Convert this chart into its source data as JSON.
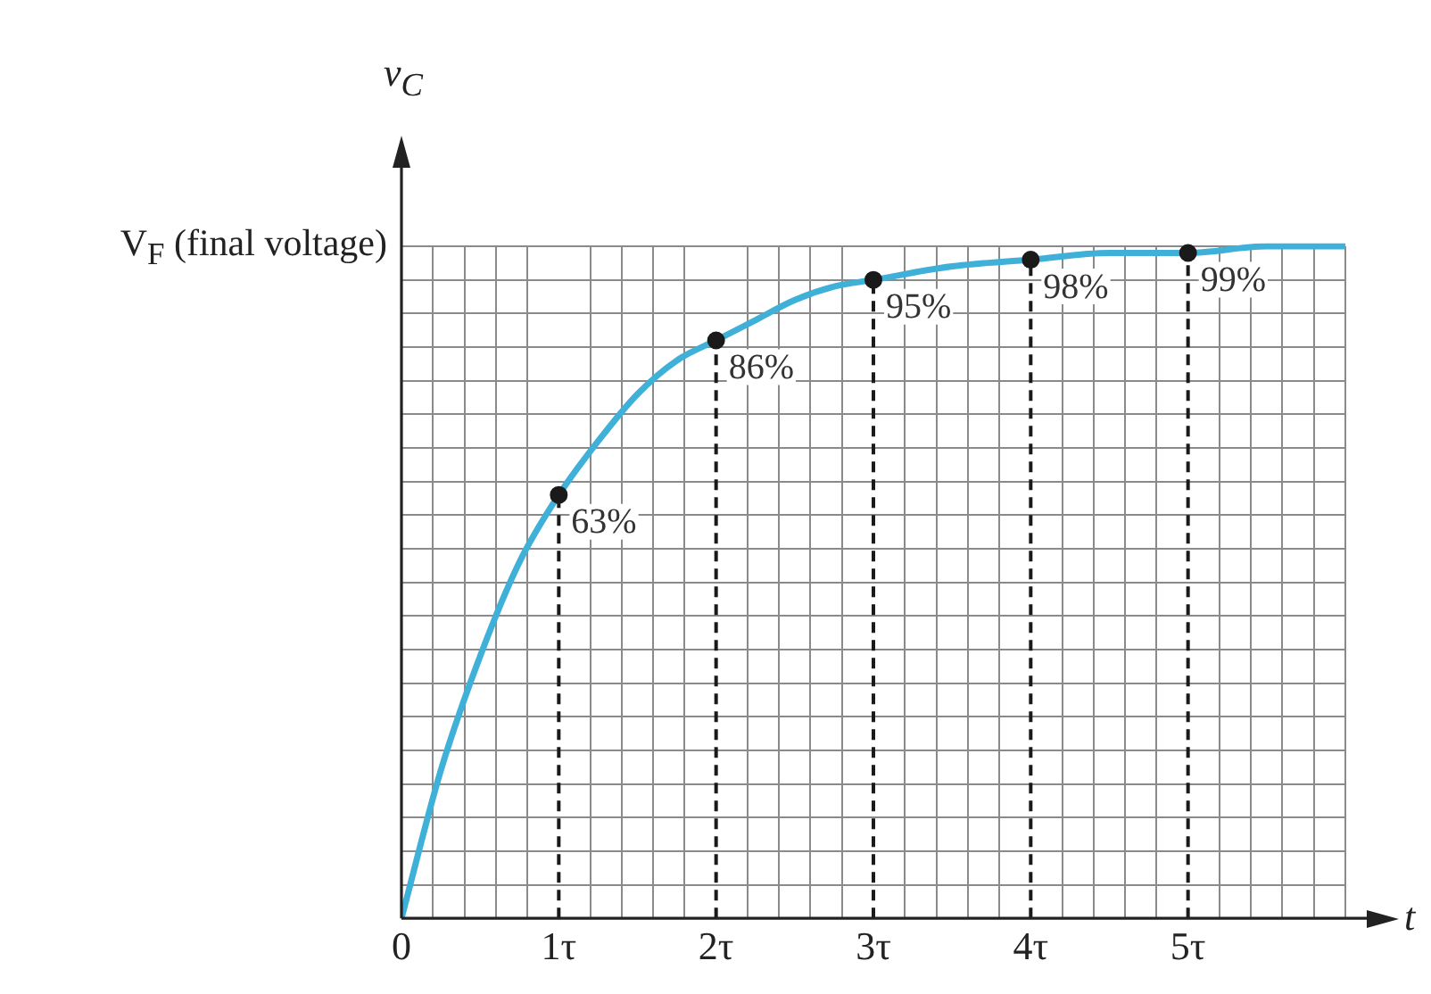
{
  "chart_data": {
    "type": "line",
    "xlabel": "t",
    "ylabel": "v$_{C}$",
    "annotations": [
      "V$_{F}$ (final voltage)"
    ],
    "xlim": [
      0,
      6
    ],
    "xticks": [
      0,
      {
        "value": 0.2,
        "label": null
      },
      {
        "value": 0.4,
        "label": null
      },
      {
        "value": 0.6,
        "label": null
      },
      {
        "value": 0.8,
        "label": null
      },
      {
        "value": 1,
        "label": "1τ"
      },
      {
        "value": 1.2,
        "label": null
      },
      {
        "value": 1.4,
        "label": null
      },
      {
        "value": 1.6,
        "label": null
      },
      {
        "value": 1.8,
        "label": null
      },
      {
        "value": 2,
        "label": "2τ"
      },
      {
        "value": 2.2,
        "label": null
      },
      {
        "value": 2.4,
        "label": null
      },
      {
        "value": 2.6,
        "label": null
      },
      {
        "value": 2.8,
        "label": null
      },
      {
        "value": 3,
        "label": "3τ"
      },
      {
        "value": 3.2,
        "label": null
      },
      {
        "value": 3.4,
        "label": null
      },
      {
        "value": 3.6,
        "label": null
      },
      {
        "value": 3.8,
        "label": null
      },
      {
        "value": 4,
        "label": "4τ"
      },
      {
        "value": 4.2,
        "label": null
      },
      {
        "value": 4.4,
        "label": null
      },
      {
        "value": 4.6,
        "label": null
      },
      {
        "value": 4.8,
        "label": null
      },
      {
        "value": 5,
        "label": "5τ"
      },
      {
        "value": 5.2,
        "label": null
      },
      {
        "value": 5.4,
        "label": null
      },
      {
        "value": 5.6,
        "label": null
      },
      {
        "value": 5.8,
        "label": null
      },
      {
        "value": 6,
        "label": null
      }
    ],
    "grid": true,
    "legend": false,
    "series": [
      {
        "color": "#3fb0d8",
        "marker": "none",
        "x": [
          0,
          0.25,
          0.5,
          0.75,
          1,
          1.25,
          1.5,
          1.75,
          2,
          2.25,
          2.5,
          2.75,
          3,
          3.5,
          4,
          4.5,
          5,
          5.5,
          6
        ],
        "values": [
          0,
          22,
          39,
          53,
          63,
          71,
          78,
          83,
          86,
          89,
          92,
          94,
          95,
          97,
          98,
          99,
          99,
          100,
          100
        ]
      },
      {
        "type": "lollipop",
        "color": "#1a1a1a",
        "marker": "circle",
        "line_style": "dashed",
        "x": [
          1,
          2,
          3,
          4,
          5
        ],
        "values": [
          63,
          86,
          95,
          98,
          99
        ],
        "value_labels": [
          "63%",
          "86%",
          "95%",
          "98%",
          "99%"
        ]
      }
    ]
  }
}
